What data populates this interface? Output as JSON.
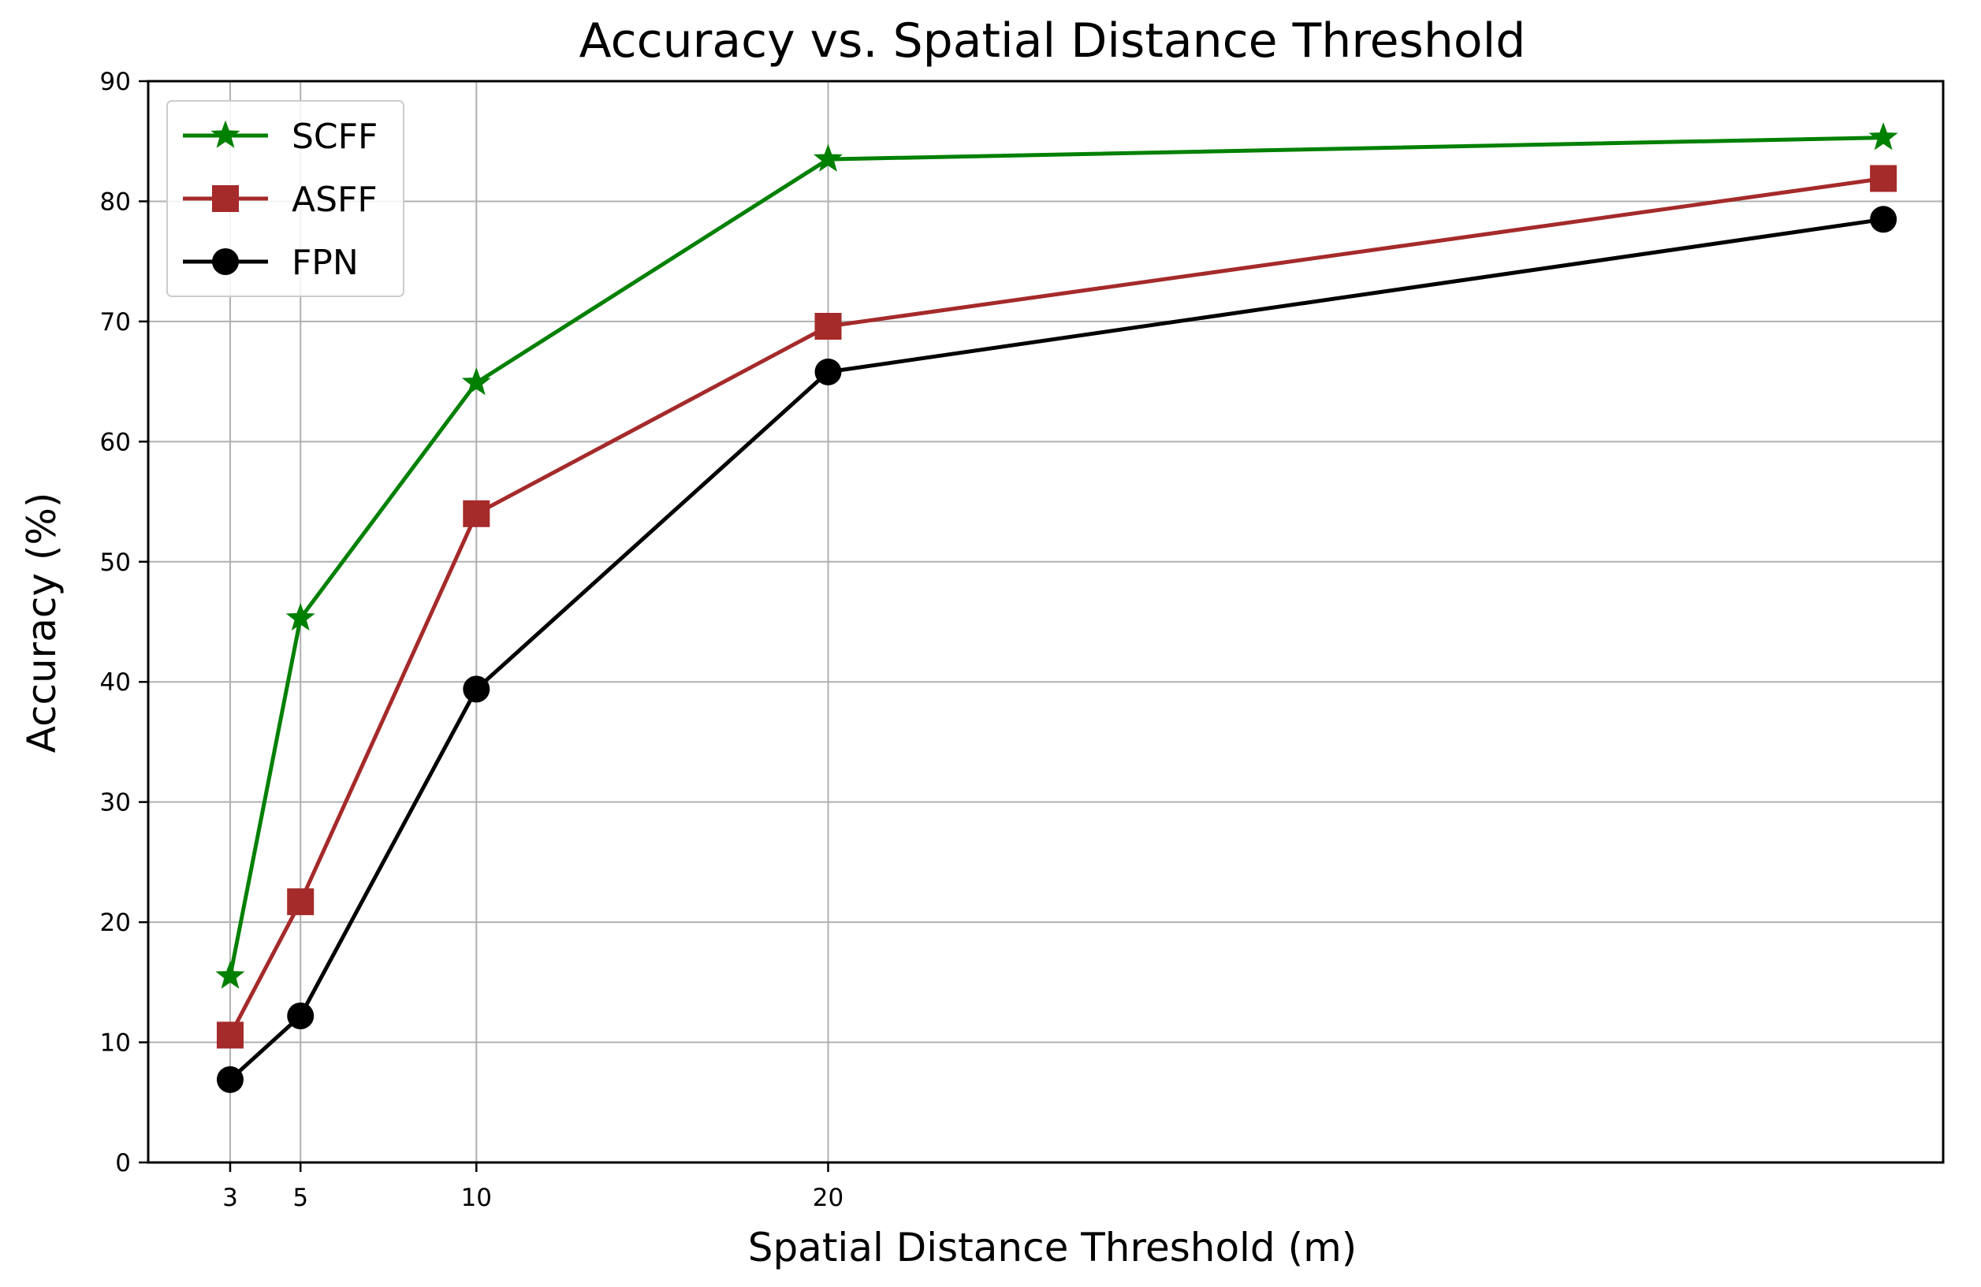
{
  "chart_data": {
    "type": "line",
    "title": "Accuracy vs. Spatial Distance Threshold",
    "xlabel": "Spatial Distance Threshold (m)",
    "ylabel": "Accuracy (%)",
    "x": [
      3,
      5,
      10,
      20,
      50
    ],
    "xticks": [
      3,
      5,
      10,
      20
    ],
    "xtick_labels": [
      "3",
      "5",
      "10",
      "20"
    ],
    "xlim": [
      0.67,
      51.7
    ],
    "yticks": [
      0,
      10,
      20,
      30,
      40,
      50,
      60,
      70,
      80,
      90
    ],
    "ytick_labels": [
      "0",
      "10",
      "20",
      "30",
      "40",
      "50",
      "60",
      "70",
      "80",
      "90"
    ],
    "ylim": [
      0,
      90
    ],
    "grid": true,
    "legend_position": "top-left",
    "series": [
      {
        "name": "SCFF",
        "color": "#008000",
        "marker": "star",
        "values": [
          15.5,
          45.3,
          64.9,
          83.5,
          85.3
        ]
      },
      {
        "name": "ASFF",
        "color": "#a52a2a",
        "marker": "square",
        "values": [
          10.6,
          21.7,
          54.0,
          69.6,
          81.9
        ]
      },
      {
        "name": "FPN",
        "color": "#000000",
        "marker": "circle",
        "values": [
          6.9,
          12.2,
          39.4,
          65.8,
          78.5
        ]
      }
    ]
  }
}
